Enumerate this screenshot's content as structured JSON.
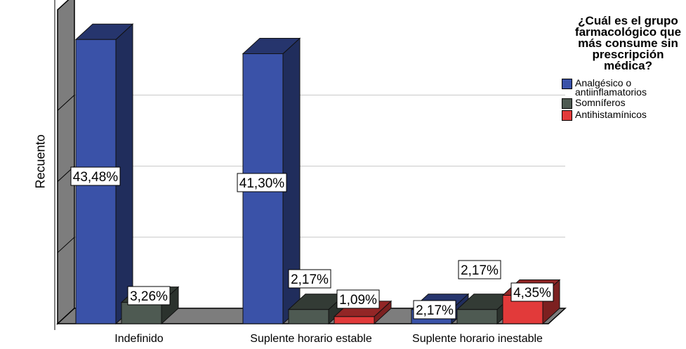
{
  "chart_data": {
    "type": "bar",
    "style": "3d-clustered",
    "ylabel": "Recuento",
    "xlabel": "",
    "categories": [
      "Indefinido",
      "Suplente horario estable",
      "Suplente horario inestable"
    ],
    "series": [
      {
        "name": "Analgésico o\nantiinflamatorios",
        "color": "#3a52a8",
        "values": [
          40,
          38,
          2
        ],
        "labels": [
          "43,48%",
          "41,30%",
          "2,17%"
        ]
      },
      {
        "name": "Somníferos",
        "color": "#4e5a52",
        "values": [
          3,
          2,
          2
        ],
        "labels": [
          "3,26%",
          "2,17%",
          "2,17%"
        ]
      },
      {
        "name": "Antihistamínicos",
        "color": "#e23a3a",
        "values": [
          0,
          1,
          4
        ],
        "labels": [
          null,
          "1,09%",
          "4,35%"
        ]
      }
    ],
    "ylim": [
      0,
      42
    ],
    "grid": true,
    "legend": {
      "title": "¿Cuál es el grupo farmacológico que más consume sin prescripción médica?",
      "position": "right"
    }
  }
}
